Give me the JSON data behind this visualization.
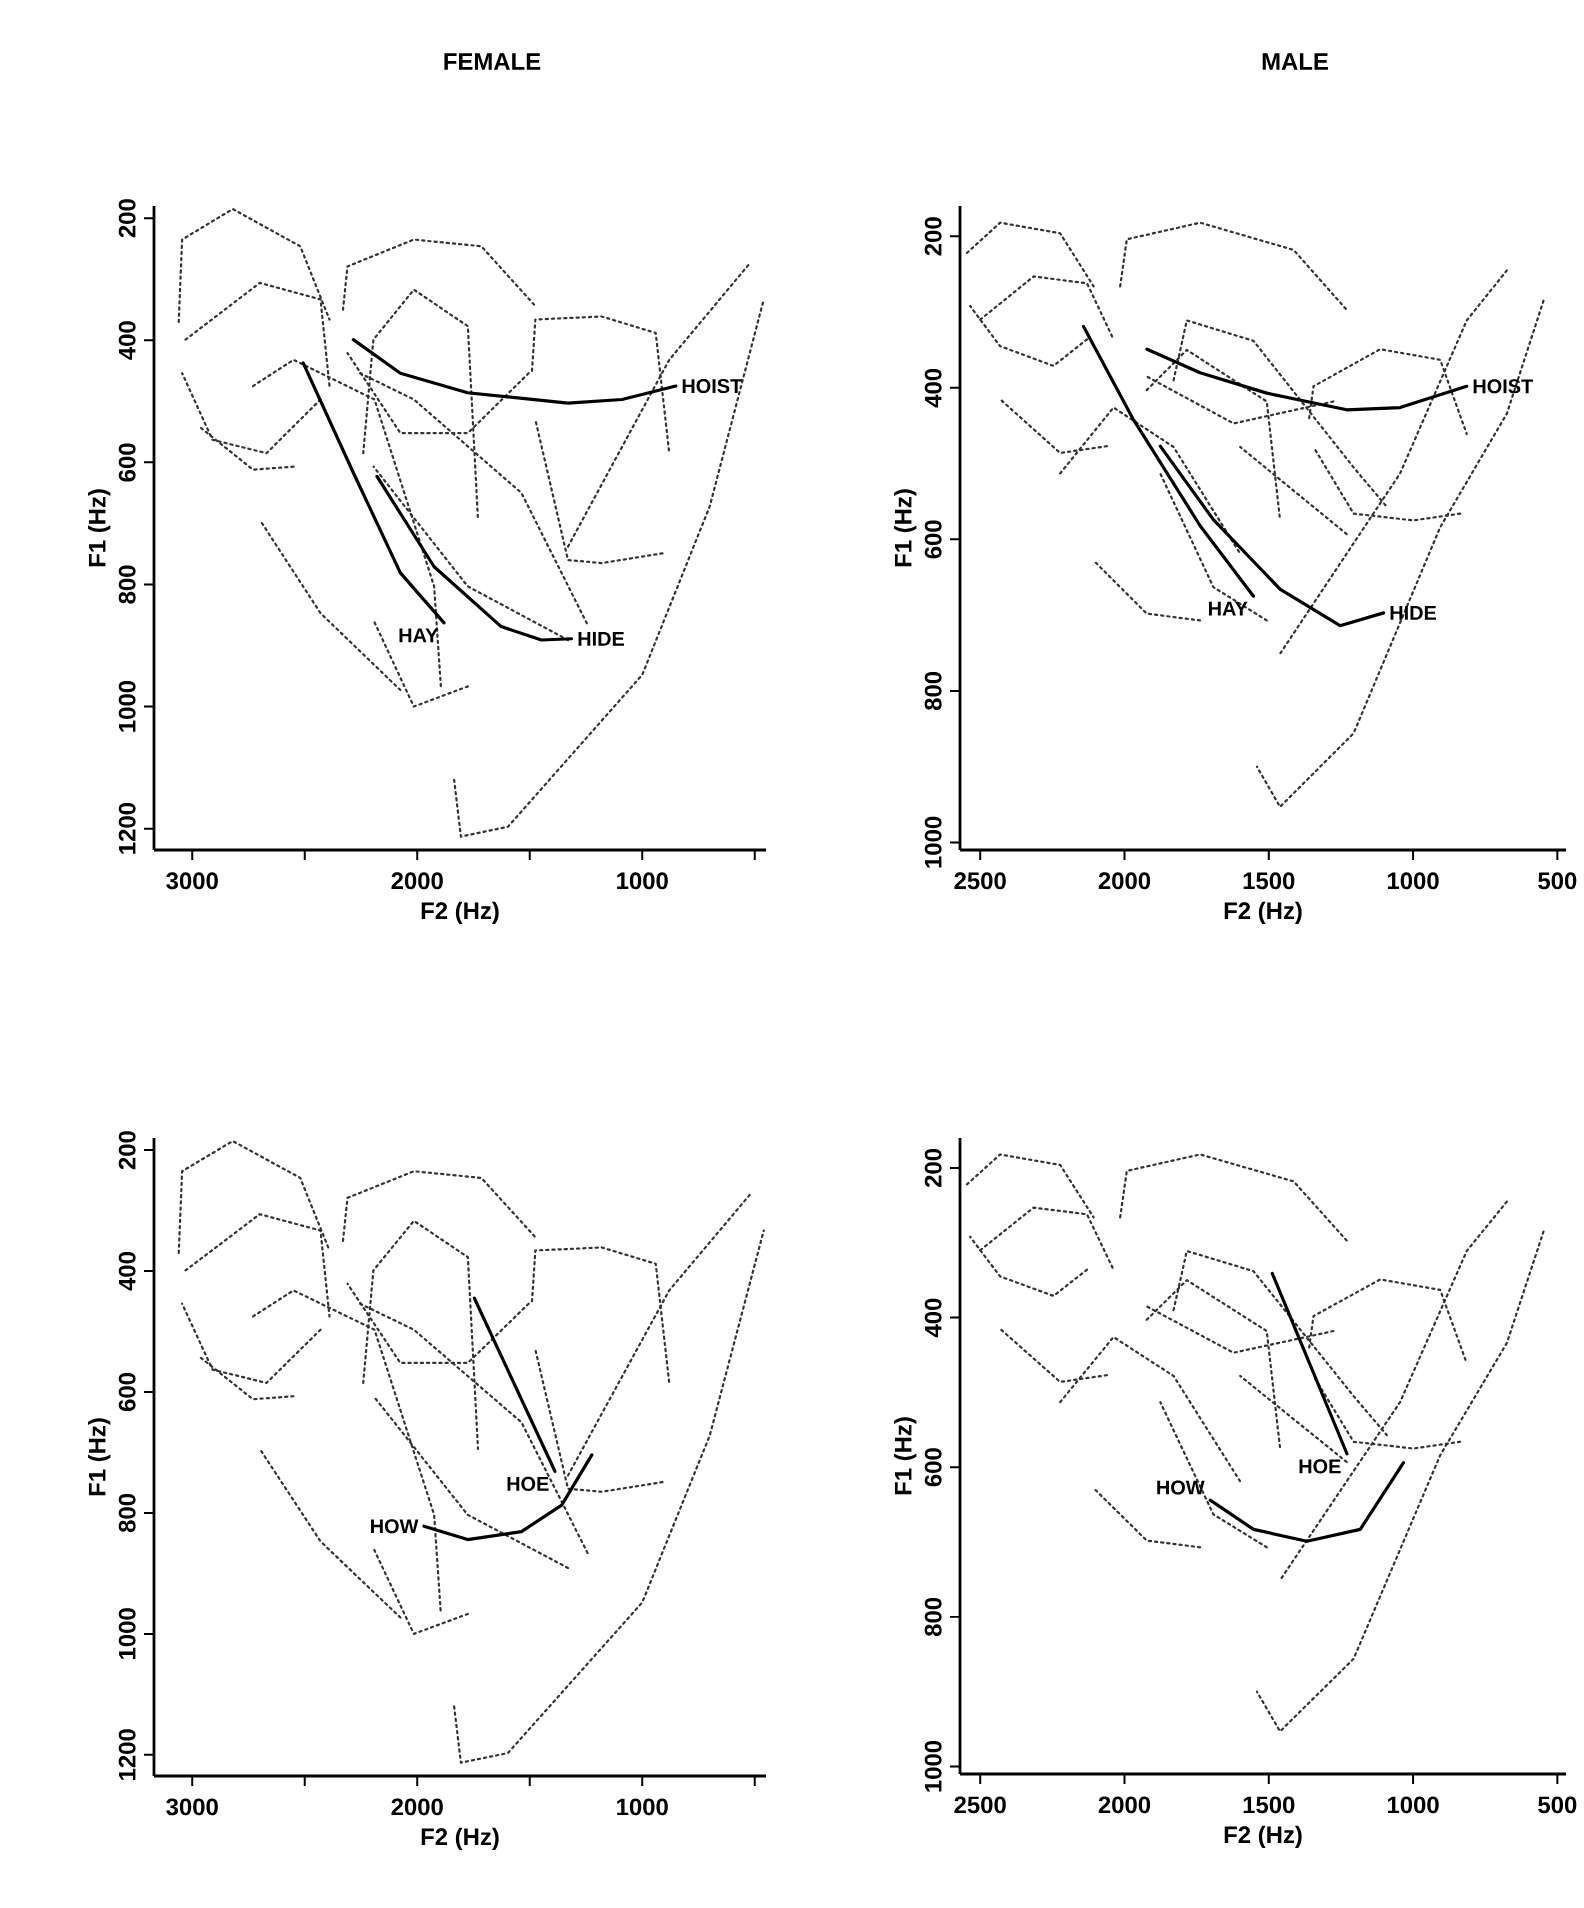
{
  "chart_data": [
    {
      "type": "line",
      "title": "FEMALE",
      "xlabel": "F2 (Hz)",
      "ylabel": "F1 (Hz)",
      "xlim": [
        3170,
        450
      ],
      "ylim": [
        1235,
        180
      ],
      "xticks": [
        3000,
        {
          "value": 2500,
          "label": null
        },
        2000,
        {
          "value": 1500,
          "label": null
        },
        1000,
        {
          "value": 500,
          "label": null
        }
      ],
      "yticks": [
        200,
        400,
        600,
        800,
        1000,
        1200
      ],
      "series": [
        {
          "color": "#333333",
          "line_style": "dotted",
          "x": [
            3060,
            3045,
            2820,
            2520,
            2390
          ],
          "values": [
            370,
            235,
            185,
            246,
            366
          ]
        },
        {
          "color": "#333333",
          "line_style": "dotted",
          "x": [
            2430,
            2670,
            2910,
            3045
          ],
          "values": [
            497,
            585,
            563,
            454
          ]
        },
        {
          "color": "#333333",
          "line_style": "dotted",
          "x": [
            3030,
            2700,
            2430,
            2390
          ],
          "values": [
            399,
            306,
            333,
            475
          ]
        },
        {
          "color": "#333333",
          "line_style": "dotted",
          "x": [
            2550,
            2730,
            2970
          ],
          "values": [
            607,
            612,
            541
          ]
        },
        {
          "color": "#333333",
          "line_style": "dotted",
          "x": [
            2730,
            2550,
            2190,
            1925,
            1895
          ],
          "values": [
            475,
            432,
            497,
            803,
            967
          ]
        },
        {
          "color": "#333333",
          "line_style": "dotted",
          "x": [
            2075,
            2430,
            2700
          ],
          "values": [
            973,
            847,
            694
          ]
        },
        {
          "color": "#333333",
          "line_style": "dotted",
          "x": [
            2330,
            2310,
            2015,
            1715,
            1475
          ],
          "values": [
            350,
            279,
            235,
            246,
            344
          ]
        },
        {
          "color": "#333333",
          "line_style": "dotted",
          "x": [
            1505,
            1775,
            2075,
            2310
          ],
          "values": [
            454,
            552,
            552,
            421
          ]
        },
        {
          "color": "#333333",
          "line_style": "dotted",
          "x": [
            2240,
            2195,
            2015,
            1775,
            1730
          ],
          "values": [
            585,
            399,
            317,
            377,
            694
          ]
        },
        {
          "color": "#333333",
          "line_style": "dotted",
          "x": [
            1775,
            2015,
            2195
          ],
          "values": [
            967,
            1000,
            858
          ]
        },
        {
          "color": "#333333",
          "line_style": "dotted",
          "x": [
            1490,
            1475,
            1180,
            940,
            880
          ],
          "values": [
            450,
            366,
            361,
            388,
            585
          ]
        },
        {
          "color": "#333333",
          "line_style": "dotted",
          "x": [
            910,
            1180,
            1330,
            1475
          ],
          "values": [
            749,
            765,
            760,
            530
          ]
        },
        {
          "color": "#333333",
          "line_style": "dotted",
          "x": [
            1836,
            1806,
            1597,
            1000,
            700,
            460
          ],
          "values": [
            1120,
            1213,
            1197,
            948,
            672,
            333
          ]
        },
        {
          "color": "#333333",
          "line_style": "dotted",
          "x": [
            1330,
            880,
            520
          ],
          "values": [
            738,
            432,
            273
          ]
        },
        {
          "color": "#333333",
          "line_style": "dotted",
          "x": [
            2254,
            2015,
            1537,
            1239
          ],
          "values": [
            454,
            497,
            650,
            869
          ]
        },
        {
          "color": "#333333",
          "line_style": "dotted",
          "x": [
            1330,
            1776,
            2194
          ],
          "values": [
            891,
            803,
            607
          ]
        },
        {
          "name": "HOIST",
          "color": "#000000",
          "line_style": "solid",
          "x": [
            2284,
            2075,
            1776,
            1330,
            1090,
            851
          ],
          "values": [
            399,
            454,
            486,
            503,
            497,
            475
          ]
        },
        {
          "name": "HAY",
          "color": "#000000",
          "line_style": "solid",
          "x": [
            2507,
            2284,
            2075,
            1881
          ],
          "values": [
            437,
            617,
            781,
            863
          ]
        },
        {
          "name": "HIDE",
          "color": "#000000",
          "line_style": "solid",
          "x": [
            2179,
            1925,
            1627,
            1448,
            1314
          ],
          "values": [
            623,
            771,
            869,
            891,
            889
          ]
        }
      ]
    },
    {
      "type": "line",
      "title": "MALE",
      "xlabel": "F2 (Hz)",
      "ylabel": "F1 (Hz)",
      "xlim": [
        2570,
        470
      ],
      "ylim": [
        1010,
        160
      ],
      "xticks": [
        2500,
        2000,
        1500,
        1000,
        500
      ],
      "yticks": [
        200,
        400,
        600,
        800,
        1000
      ],
      "series": [
        {
          "color": "#333333",
          "line_style": "dotted",
          "x": [
            2546,
            2431,
            2223,
            2107
          ],
          "values": [
            222,
            182,
            196,
            266
          ]
        },
        {
          "color": "#333333",
          "line_style": "dotted",
          "x": [
            2130,
            2246,
            2431,
            2535
          ],
          "values": [
            336,
            371,
            345,
            292
          ]
        },
        {
          "color": "#333333",
          "line_style": "dotted",
          "x": [
            2500,
            2315,
            2130,
            2038
          ],
          "values": [
            310,
            253,
            262,
            336
          ]
        },
        {
          "color": "#333333",
          "line_style": "dotted",
          "x": [
            2061,
            2223,
            2431
          ],
          "values": [
            477,
            486,
            415
          ]
        },
        {
          "color": "#333333",
          "line_style": "dotted",
          "x": [
            2223,
            2038,
            1830,
            1599
          ],
          "values": [
            513,
            426,
            478,
            619
          ]
        },
        {
          "color": "#333333",
          "line_style": "dotted",
          "x": [
            1738,
            1923,
            2107
          ],
          "values": [
            707,
            698,
            628
          ]
        },
        {
          "color": "#333333",
          "line_style": "dotted",
          "x": [
            2015,
            1992,
            1738,
            1414,
            1230
          ],
          "values": [
            266,
            204,
            182,
            218,
            297
          ]
        },
        {
          "color": "#333333",
          "line_style": "dotted",
          "x": [
            1276,
            1622,
            1923
          ],
          "values": [
            418,
            447,
            385
          ]
        },
        {
          "color": "#333333",
          "line_style": "dotted",
          "x": [
            1923,
            1784,
            1507,
            1461
          ],
          "values": [
            403,
            350,
            418,
            574
          ]
        },
        {
          "color": "#333333",
          "line_style": "dotted",
          "x": [
            1507,
            1692,
            1876
          ],
          "values": [
            707,
            663,
            513
          ]
        },
        {
          "color": "#333333",
          "line_style": "dotted",
          "x": [
            1360,
            1345,
            1114,
            906,
            814
          ],
          "values": [
            440,
            398,
            349,
            363,
            461
          ]
        },
        {
          "color": "#333333",
          "line_style": "dotted",
          "x": [
            837,
            999,
            1206,
            1345
          ],
          "values": [
            566,
            575,
            566,
            478
          ]
        },
        {
          "color": "#333333",
          "line_style": "dotted",
          "x": [
            548,
            675,
            906,
            1206,
            1461,
            1541
          ],
          "values": [
            285,
            434,
            584,
            856,
            953,
            900
          ]
        },
        {
          "color": "#333333",
          "line_style": "dotted",
          "x": [
            675,
            814,
            1045,
            1461
          ],
          "values": [
            245,
            311,
            513,
            751
          ]
        },
        {
          "color": "#333333",
          "line_style": "dotted",
          "x": [
            1830,
            1784,
            1553,
            1206,
            1091
          ],
          "values": [
            390,
            311,
            338,
            505,
            557
          ]
        },
        {
          "color": "#333333",
          "line_style": "dotted",
          "x": [
            1230,
            1599
          ],
          "values": [
            593,
            478
          ]
        },
        {
          "name": "HOIST",
          "color": "#000000",
          "line_style": "solid",
          "x": [
            1922,
            1738,
            1507,
            1230,
            1045,
            814
          ],
          "values": [
            349,
            380,
            407,
            429,
            426,
            398
          ]
        },
        {
          "name": "HAY",
          "color": "#000000",
          "line_style": "solid",
          "x": [
            2142,
            1969,
            1738,
            1553
          ],
          "values": [
            319,
            442,
            582,
            675
          ]
        },
        {
          "name": "HIDE",
          "color": "#000000",
          "line_style": "solid",
          "x": [
            1876,
            1692,
            1460,
            1253,
            1102
          ],
          "values": [
            477,
            574,
            666,
            714,
            697
          ]
        }
      ]
    },
    {
      "type": "line",
      "xlabel": "F2 (Hz)",
      "ylabel": "F1 (Hz)",
      "xlim": [
        3170,
        450
      ],
      "ylim": [
        1235,
        180
      ],
      "xticks": [
        3000,
        {
          "value": 2500,
          "label": null
        },
        2000,
        {
          "value": 1500,
          "label": null
        },
        1000,
        {
          "value": 500,
          "label": null
        }
      ],
      "yticks": [
        200,
        400,
        600,
        800,
        1000,
        1200
      ],
      "series": [
        {
          "color": "#333333",
          "line_style": "dotted",
          "x": [
            3060,
            3045,
            2820,
            2520,
            2390
          ],
          "values": [
            370,
            235,
            185,
            246,
            366
          ]
        },
        {
          "color": "#333333",
          "line_style": "dotted",
          "x": [
            2430,
            2670,
            2910,
            3045
          ],
          "values": [
            497,
            585,
            563,
            454
          ]
        },
        {
          "color": "#333333",
          "line_style": "dotted",
          "x": [
            3030,
            2700,
            2430,
            2390
          ],
          "values": [
            399,
            306,
            333,
            475
          ]
        },
        {
          "color": "#333333",
          "line_style": "dotted",
          "x": [
            2550,
            2730,
            2970
          ],
          "values": [
            607,
            612,
            541
          ]
        },
        {
          "color": "#333333",
          "line_style": "dotted",
          "x": [
            2730,
            2550,
            2190,
            1925,
            1895
          ],
          "values": [
            475,
            432,
            497,
            803,
            967
          ]
        },
        {
          "color": "#333333",
          "line_style": "dotted",
          "x": [
            2075,
            2430,
            2700
          ],
          "values": [
            973,
            847,
            694
          ]
        },
        {
          "color": "#333333",
          "line_style": "dotted",
          "x": [
            2330,
            2310,
            2015,
            1715,
            1475
          ],
          "values": [
            350,
            279,
            235,
            246,
            344
          ]
        },
        {
          "color": "#333333",
          "line_style": "dotted",
          "x": [
            1505,
            1775,
            2075,
            2310
          ],
          "values": [
            454,
            552,
            552,
            421
          ]
        },
        {
          "color": "#333333",
          "line_style": "dotted",
          "x": [
            2240,
            2195,
            2015,
            1775,
            1730
          ],
          "values": [
            585,
            399,
            317,
            377,
            694
          ]
        },
        {
          "color": "#333333",
          "line_style": "dotted",
          "x": [
            1775,
            2015,
            2195
          ],
          "values": [
            967,
            1000,
            858
          ]
        },
        {
          "color": "#333333",
          "line_style": "dotted",
          "x": [
            1490,
            1475,
            1180,
            940,
            880
          ],
          "values": [
            450,
            366,
            361,
            388,
            585
          ]
        },
        {
          "color": "#333333",
          "line_style": "dotted",
          "x": [
            910,
            1180,
            1330,
            1475
          ],
          "values": [
            749,
            765,
            760,
            530
          ]
        },
        {
          "color": "#333333",
          "line_style": "dotted",
          "x": [
            1836,
            1806,
            1597,
            1000,
            700,
            460
          ],
          "values": [
            1120,
            1213,
            1197,
            948,
            672,
            333
          ]
        },
        {
          "color": "#333333",
          "line_style": "dotted",
          "x": [
            1330,
            880,
            520
          ],
          "values": [
            738,
            432,
            273
          ]
        },
        {
          "color": "#333333",
          "line_style": "dotted",
          "x": [
            2254,
            2015,
            1537,
            1239
          ],
          "values": [
            454,
            497,
            650,
            869
          ]
        },
        {
          "color": "#333333",
          "line_style": "dotted",
          "x": [
            1330,
            1776,
            2194
          ],
          "values": [
            891,
            803,
            607
          ]
        },
        {
          "name": "HOE",
          "color": "#000000",
          "line_style": "solid",
          "x": [
            1746,
            1388
          ],
          "values": [
            445,
            731
          ]
        },
        {
          "name": "HOW",
          "color": "#000000",
          "line_style": "solid",
          "x": [
            1224,
            1358,
            1537,
            1776,
            1970
          ],
          "values": [
            704,
            787,
            831,
            844,
            822
          ]
        }
      ]
    },
    {
      "type": "line",
      "xlabel": "F2 (Hz)",
      "ylabel": "F1 (Hz)",
      "xlim": [
        2570,
        470
      ],
      "ylim": [
        1010,
        160
      ],
      "xticks": [
        2500,
        2000,
        1500,
        1000,
        500
      ],
      "yticks": [
        200,
        400,
        600,
        800,
        1000
      ],
      "series": [
        {
          "color": "#333333",
          "line_style": "dotted",
          "x": [
            2546,
            2431,
            2223,
            2107
          ],
          "values": [
            222,
            182,
            196,
            266
          ]
        },
        {
          "color": "#333333",
          "line_style": "dotted",
          "x": [
            2130,
            2246,
            2431,
            2535
          ],
          "values": [
            336,
            371,
            345,
            292
          ]
        },
        {
          "color": "#333333",
          "line_style": "dotted",
          "x": [
            2500,
            2315,
            2130,
            2038
          ],
          "values": [
            310,
            253,
            262,
            336
          ]
        },
        {
          "color": "#333333",
          "line_style": "dotted",
          "x": [
            2061,
            2223,
            2431
          ],
          "values": [
            477,
            486,
            415
          ]
        },
        {
          "color": "#333333",
          "line_style": "dotted",
          "x": [
            2223,
            2038,
            1830,
            1599
          ],
          "values": [
            513,
            426,
            478,
            619
          ]
        },
        {
          "color": "#333333",
          "line_style": "dotted",
          "x": [
            1738,
            1923,
            2107
          ],
          "values": [
            707,
            698,
            628
          ]
        },
        {
          "color": "#333333",
          "line_style": "dotted",
          "x": [
            2015,
            1992,
            1738,
            1414,
            1230
          ],
          "values": [
            266,
            204,
            182,
            218,
            297
          ]
        },
        {
          "color": "#333333",
          "line_style": "dotted",
          "x": [
            1276,
            1622,
            1923
          ],
          "values": [
            418,
            447,
            385
          ]
        },
        {
          "color": "#333333",
          "line_style": "dotted",
          "x": [
            1923,
            1784,
            1507,
            1461
          ],
          "values": [
            403,
            350,
            418,
            574
          ]
        },
        {
          "color": "#333333",
          "line_style": "dotted",
          "x": [
            1507,
            1692,
            1876
          ],
          "values": [
            707,
            663,
            513
          ]
        },
        {
          "color": "#333333",
          "line_style": "dotted",
          "x": [
            1360,
            1345,
            1114,
            906,
            814
          ],
          "values": [
            440,
            398,
            349,
            363,
            461
          ]
        },
        {
          "color": "#333333",
          "line_style": "dotted",
          "x": [
            837,
            999,
            1206,
            1345
          ],
          "values": [
            566,
            575,
            566,
            478
          ]
        },
        {
          "color": "#333333",
          "line_style": "dotted",
          "x": [
            548,
            675,
            906,
            1206,
            1461,
            1541
          ],
          "values": [
            285,
            434,
            584,
            856,
            953,
            900
          ]
        },
        {
          "color": "#333333",
          "line_style": "dotted",
          "x": [
            675,
            814,
            1045,
            1461
          ],
          "values": [
            245,
            311,
            513,
            751
          ]
        },
        {
          "color": "#333333",
          "line_style": "dotted",
          "x": [
            1830,
            1784,
            1553,
            1206,
            1091
          ],
          "values": [
            390,
            311,
            338,
            505,
            557
          ]
        },
        {
          "color": "#333333",
          "line_style": "dotted",
          "x": [
            1230,
            1599
          ],
          "values": [
            593,
            478
          ]
        },
        {
          "name": "HOE",
          "color": "#000000",
          "line_style": "solid",
          "x": [
            1488,
            1229
          ],
          "values": [
            341,
            582
          ]
        },
        {
          "name": "HOW",
          "color": "#000000",
          "line_style": "solid",
          "x": [
            1033,
            1183,
            1368,
            1553,
            1703
          ],
          "values": [
            594,
            683,
            699,
            683,
            644
          ]
        }
      ]
    }
  ]
}
